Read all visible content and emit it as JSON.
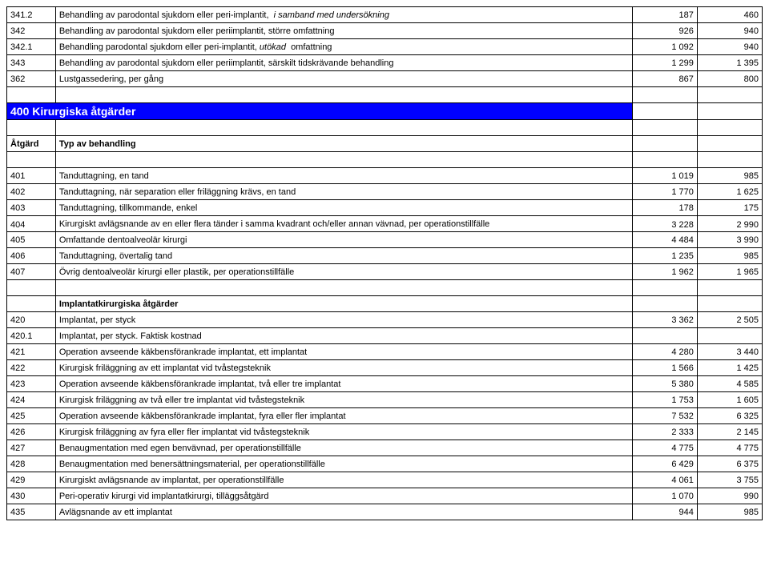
{
  "top_rows": [
    {
      "code": "341.2",
      "desc": "Behandling av parodontal sjukdom eller peri-implantit, i samband med undersökning",
      "v1": "187",
      "v2": "460",
      "italic_part": "i samband med undersökning"
    },
    {
      "code": "342",
      "desc": "Behandling av parodontal sjukdom eller periimplantit, större omfattning",
      "v1": "926",
      "v2": "940"
    },
    {
      "code": "342.1",
      "desc": "Behandling parodontal sjukdom eller peri-implantit, utökad omfattning",
      "v1": "1 092",
      "v2": "940",
      "italic_word": "utökad"
    },
    {
      "code": "343",
      "desc": "Behandling av parodontal sjukdom eller periimplantit, särskilt tidskrävande behandling",
      "v1": "1 299",
      "v2": "1 395"
    },
    {
      "code": "362",
      "desc": "Lustgassedering, per gång",
      "v1": "867",
      "v2": "800"
    }
  ],
  "section_header": "400 Kirurgiska åtgärder",
  "atgard_label": "Åtgärd",
  "typ_label": "Typ av behandling",
  "mid_rows": [
    {
      "code": "401",
      "desc": "Tanduttagning, en tand",
      "v1": "1 019",
      "v2": "985"
    },
    {
      "code": "402",
      "desc": "Tanduttagning, när separation eller friläggning krävs, en tand",
      "v1": "1 770",
      "v2": "1 625"
    },
    {
      "code": "403",
      "desc": "Tanduttagning, tillkommande, enkel",
      "v1": "178",
      "v2": "175"
    },
    {
      "code": "404",
      "desc": "Kirurgiskt avlägsnande av en eller flera tänder i samma kvadrant och/eller annan vävnad, per operationstillfälle",
      "v1": "3 228",
      "v2": "2 990"
    },
    {
      "code": "405",
      "desc": "Omfattande dentoalveolär kirurgi",
      "v1": "4 484",
      "v2": "3 990"
    },
    {
      "code": "406",
      "desc": "Tanduttagning, övertalig tand",
      "v1": "1 235",
      "v2": "985"
    },
    {
      "code": "407",
      "desc": "Övrig dentoalveolär kirurgi eller plastik, per operationstillfälle",
      "v1": "1 962",
      "v2": "1 965"
    }
  ],
  "implant_header": "Implantatkirurgiska åtgärder",
  "implant_rows": [
    {
      "code": "420",
      "desc": "Implantat, per styck",
      "v1": "3 362",
      "v2": "2 505"
    },
    {
      "code": "420.1",
      "desc": "Implantat, per styck. Faktisk kostnad",
      "v1": "",
      "v2": ""
    },
    {
      "code": "421",
      "desc": "Operation avseende käkbensförankrade implantat, ett implantat",
      "v1": "4 280",
      "v2": "3 440"
    },
    {
      "code": "422",
      "desc": "Kirurgisk friläggning av ett implantat vid tvåstegsteknik",
      "v1": "1 566",
      "v2": "1 425"
    },
    {
      "code": "423",
      "desc": "Operation avseende käkbensförankrade implantat, två eller tre implantat",
      "v1": "5 380",
      "v2": "4 585"
    },
    {
      "code": "424",
      "desc": "Kirurgisk friläggning av två eller tre implantat vid tvåstegsteknik",
      "v1": "1 753",
      "v2": "1 605"
    },
    {
      "code": "425",
      "desc": "Operation avseende käkbensförankrade implantat, fyra eller fler implantat",
      "v1": "7 532",
      "v2": "6 325"
    },
    {
      "code": "426",
      "desc": "Kirurgisk friläggning av fyra eller fler implantat vid tvåstegsteknik",
      "v1": "2 333",
      "v2": "2 145"
    },
    {
      "code": "427",
      "desc": "Benaugmentation med egen benvävnad, per operationstillfälle",
      "v1": "4 775",
      "v2": "4 775"
    },
    {
      "code": "428",
      "desc": "Benaugmentation med benersättningsmaterial, per operationstillfälle",
      "v1": "6 429",
      "v2": "6 375"
    },
    {
      "code": "429",
      "desc": "Kirurgiskt avlägsnande av implantat, per operationstillfälle",
      "v1": "4 061",
      "v2": "3 755"
    },
    {
      "code": "430",
      "desc": "Peri-operativ kirurgi vid implantatkirurgi, tilläggsåtgärd",
      "v1": "1 070",
      "v2": "990"
    },
    {
      "code": "435",
      "desc": "Avlägsnande av ett implantat",
      "v1": "944",
      "v2": "985"
    }
  ],
  "colors": {
    "section_bg": "#0000ff",
    "section_fg": "#ffffff",
    "border": "#000000",
    "bg": "#ffffff"
  },
  "fonts": {
    "body_size": 11,
    "section_size": 14
  }
}
